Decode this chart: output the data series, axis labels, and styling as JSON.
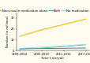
{
  "x_labels": [
    "1999-2004",
    "2005-2010",
    "2011-2016",
    "2017-2020"
  ],
  "x_positions": [
    0,
    1,
    2,
    3
  ],
  "series": {
    "Insulin only": {
      "values": [
        1.5,
        1.8,
        2.0,
        2.2
      ],
      "color": "#4455aa",
      "linewidth": 0.6
    },
    "Non-insulin medication alone": {
      "values": [
        13,
        19,
        24,
        29
      ],
      "color": "#f0c000",
      "linewidth": 0.8
    },
    "Both": {
      "values": [
        1.2,
        2.2,
        3.5,
        5.2
      ],
      "color": "#44bbbb",
      "linewidth": 0.6
    },
    "No medication": {
      "values": [
        2.0,
        3.0,
        4.2,
        5.8
      ],
      "color": "#99dddd",
      "linewidth": 0.6
    }
  },
  "ylabel": "Number (in millions)",
  "xlabel": "Time (interval)",
  "ylim": [
    0,
    35
  ],
  "ytick_values": [
    0,
    10,
    20,
    30
  ],
  "ytick_labels": [
    "0",
    "10",
    "20",
    "30"
  ],
  "background_color": "#fefbf0",
  "legend_fontsize": 2.8,
  "axis_label_fontsize": 2.8,
  "tick_fontsize": 2.6
}
